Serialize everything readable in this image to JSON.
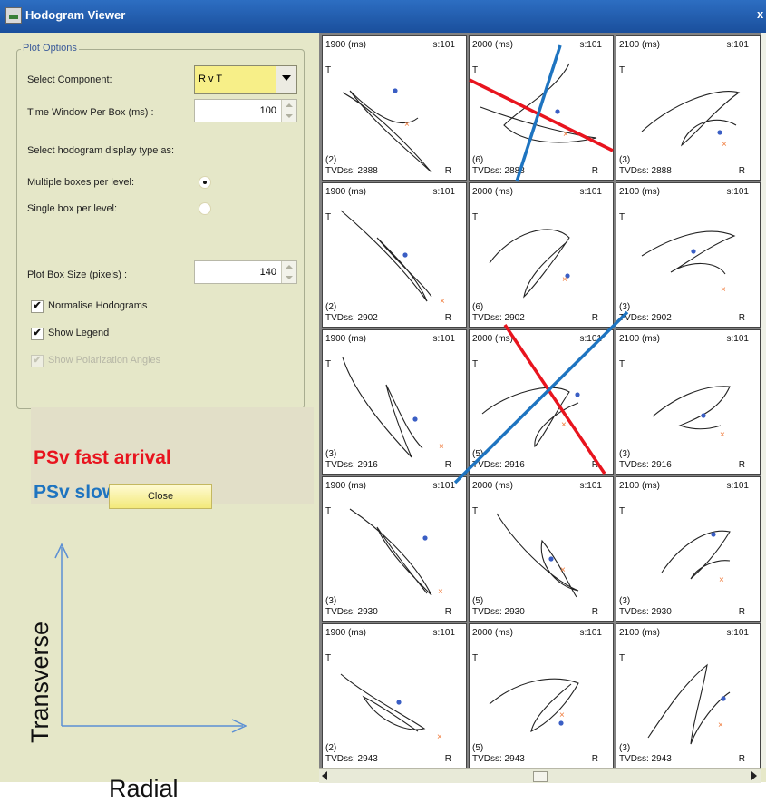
{
  "window": {
    "title": "Hodogram Viewer",
    "close_glyph": "x"
  },
  "plot_options": {
    "legend": "Plot Options",
    "select_component_label": "Select Component:",
    "select_component_value": "R v T",
    "time_window_label": "Time Window Per Box (ms) :",
    "time_window_value": "100",
    "display_type_label": "Select hodogram display type as:",
    "multiple_boxes_label": "Multiple boxes per level:",
    "multiple_boxes_selected": true,
    "single_box_label": "Single box per level:",
    "single_box_selected": false,
    "plot_box_size_label": "Plot Box Size (pixels) :",
    "plot_box_size_value": "140",
    "normalise_label": "Normalise Hodograms",
    "normalise_checked": true,
    "show_legend_label": "Show Legend",
    "show_legend_checked": true,
    "show_polarization_label": "Show Polarization Angles",
    "show_polarization_checked": true,
    "show_polarization_enabled": false
  },
  "close_label": "Close",
  "annotation": {
    "fast_label": "PSv fast arrival",
    "fast_color": "#e8141e",
    "slow_label": "PSv slow arrival",
    "slow_color": "#1e74c0",
    "transverse_label": "Transverse",
    "radial_label": "Radial"
  },
  "hodogram": {
    "s_label": "s:101",
    "t_label": "T",
    "r_label": "R",
    "columns": [
      "1900 (ms)",
      "2000 (ms)",
      "2100 (ms)"
    ],
    "rows": [
      {
        "depth": "TVDss: 2888",
        "counts": [
          "(2)",
          "(6)",
          "(3)"
        ]
      },
      {
        "depth": "TVDss: 2902",
        "counts": [
          "(2)",
          "(6)",
          "(3)"
        ]
      },
      {
        "depth": "TVDss: 2916",
        "counts": [
          "(3)",
          "(5)",
          "(3)"
        ]
      },
      {
        "depth": "TVDss: 2930",
        "counts": [
          "(3)",
          "(5)",
          "(3)"
        ]
      },
      {
        "depth": "TVDss: 2943",
        "counts": [
          "(2)",
          "(5)",
          "(3)"
        ]
      }
    ]
  },
  "icons": {
    "app": "app-icon",
    "dropdown": "chevron-down-icon",
    "arrow_up": "arrow-up-icon",
    "arrow_right": "arrow-right-icon"
  }
}
